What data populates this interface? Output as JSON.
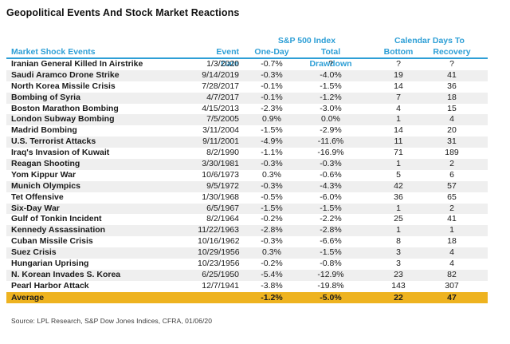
{
  "title": "Geopolitical Events And Stock Market Reactions",
  "source": "Source: LPL Research, S&P Dow Jones Indices, CFRA, 01/06/20",
  "colors": {
    "header_blue": "#2e9fd6",
    "highlight_gold": "#eeb320",
    "stripe_gray": "#efefef"
  },
  "chart_data": {
    "type": "table",
    "title": "Geopolitical Events And Stock Market Reactions",
    "column_groups": {
      "sp500": "S&P 500 Index",
      "calendar": "Calendar Days To"
    },
    "columns": {
      "event": "Market Shock Events",
      "date": "Event Date",
      "one_day": "One-Day",
      "drawdown": "Total Drawdown",
      "bottom": "Bottom",
      "recovery": "Recovery"
    },
    "rows": [
      {
        "event": "Iranian General Killed In Airstrike",
        "date": "1/3/2020",
        "one_day": "-0.7%",
        "drawdown": "?",
        "bottom": "?",
        "recovery": "?"
      },
      {
        "event": "Saudi Aramco Drone Strike",
        "date": "9/14/2019",
        "one_day": "-0.3%",
        "drawdown": "-4.0%",
        "bottom": "19",
        "recovery": "41"
      },
      {
        "event": "North Korea Missile Crisis",
        "date": "7/28/2017",
        "one_day": "-0.1%",
        "drawdown": "-1.5%",
        "bottom": "14",
        "recovery": "36"
      },
      {
        "event": "Bombing of Syria",
        "date": "4/7/2017",
        "one_day": "-0.1%",
        "drawdown": "-1.2%",
        "bottom": "7",
        "recovery": "18"
      },
      {
        "event": "Boston Marathon Bombing",
        "date": "4/15/2013",
        "one_day": "-2.3%",
        "drawdown": "-3.0%",
        "bottom": "4",
        "recovery": "15"
      },
      {
        "event": "London Subway Bombing",
        "date": "7/5/2005",
        "one_day": "0.9%",
        "drawdown": "0.0%",
        "bottom": "1",
        "recovery": "4"
      },
      {
        "event": "Madrid Bombing",
        "date": "3/11/2004",
        "one_day": "-1.5%",
        "drawdown": "-2.9%",
        "bottom": "14",
        "recovery": "20"
      },
      {
        "event": "U.S. Terrorist Attacks",
        "date": "9/11/2001",
        "one_day": "-4.9%",
        "drawdown": "-11.6%",
        "bottom": "11",
        "recovery": "31"
      },
      {
        "event": "Iraq's Invasion of Kuwait",
        "date": "8/2/1990",
        "one_day": "-1.1%",
        "drawdown": "-16.9%",
        "bottom": "71",
        "recovery": "189"
      },
      {
        "event": "Reagan Shooting",
        "date": "3/30/1981",
        "one_day": "-0.3%",
        "drawdown": "-0.3%",
        "bottom": "1",
        "recovery": "2"
      },
      {
        "event": "Yom Kippur War",
        "date": "10/6/1973",
        "one_day": "0.3%",
        "drawdown": "-0.6%",
        "bottom": "5",
        "recovery": "6"
      },
      {
        "event": "Munich Olympics",
        "date": "9/5/1972",
        "one_day": "-0.3%",
        "drawdown": "-4.3%",
        "bottom": "42",
        "recovery": "57"
      },
      {
        "event": "Tet Offensive",
        "date": "1/30/1968",
        "one_day": "-0.5%",
        "drawdown": "-6.0%",
        "bottom": "36",
        "recovery": "65"
      },
      {
        "event": "Six-Day War",
        "date": "6/5/1967",
        "one_day": "-1.5%",
        "drawdown": "-1.5%",
        "bottom": "1",
        "recovery": "2"
      },
      {
        "event": "Gulf of Tonkin Incident",
        "date": "8/2/1964",
        "one_day": "-0.2%",
        "drawdown": "-2.2%",
        "bottom": "25",
        "recovery": "41"
      },
      {
        "event": "Kennedy Assassination",
        "date": "11/22/1963",
        "one_day": "-2.8%",
        "drawdown": "-2.8%",
        "bottom": "1",
        "recovery": "1"
      },
      {
        "event": "Cuban Missile Crisis",
        "date": "10/16/1962",
        "one_day": "-0.3%",
        "drawdown": "-6.6%",
        "bottom": "8",
        "recovery": "18"
      },
      {
        "event": "Suez Crisis",
        "date": "10/29/1956",
        "one_day": "0.3%",
        "drawdown": "-1.5%",
        "bottom": "3",
        "recovery": "4"
      },
      {
        "event": "Hungarian Uprising",
        "date": "10/23/1956",
        "one_day": "-0.2%",
        "drawdown": "-0.8%",
        "bottom": "3",
        "recovery": "4"
      },
      {
        "event": "N. Korean Invades S. Korea",
        "date": "6/25/1950",
        "one_day": "-5.4%",
        "drawdown": "-12.9%",
        "bottom": "23",
        "recovery": "82"
      },
      {
        "event": "Pearl Harbor Attack",
        "date": "12/7/1941",
        "one_day": "-3.8%",
        "drawdown": "-19.8%",
        "bottom": "143",
        "recovery": "307"
      }
    ],
    "average": {
      "label": "Average",
      "date": "",
      "one_day": "-1.2%",
      "drawdown": "-5.0%",
      "bottom": "22",
      "recovery": "47"
    }
  }
}
